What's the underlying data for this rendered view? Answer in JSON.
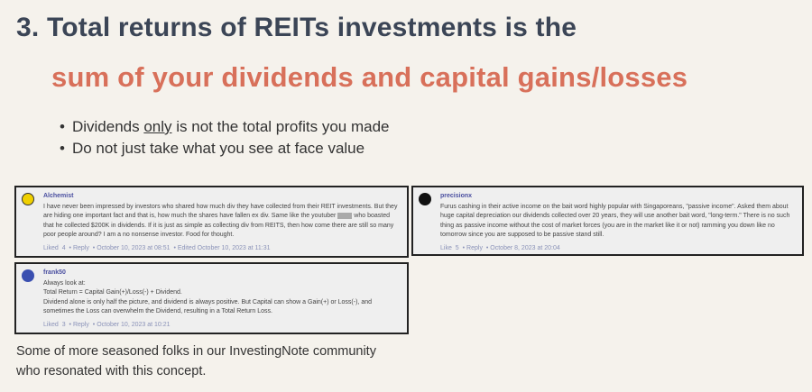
{
  "slide": {
    "title_line1": "3. Total returns of REITs investments is the",
    "title_line2": "sum of your dividends and capital gains/losses",
    "bullet1_pre": "Dividends ",
    "bullet1_underlined": "only",
    "bullet1_post": " is not the total profits you made",
    "bullet2": "Do not just take what you see at face value",
    "footer_line1": "Some of more seasoned folks in our InvestingNote community",
    "footer_line2": "who resonated with this concept.",
    "colors": {
      "title": "#3b4556",
      "subtitle": "#d8705a",
      "background": "#f5f2ec"
    }
  },
  "comments": [
    {
      "user": "Alchemist",
      "text_pre": "I have never been impressed by investors who shared how much div they have collected from their REIT investments. But they are hiding one important fact and that is, how much the shares have fallen ex div. Same like the youtuber ",
      "text_post": " who boasted that he collected $200K in dividends. If it is just as simple as collecting div from REITS, then how come there are still so many poor people around? I am a no nonsense investor. Food for thought.",
      "like_label": "Liked",
      "likes": "4",
      "reply_label": "Reply",
      "date": "October 10, 2023 at 08:51",
      "edited": "Edited October 10, 2023 at 11:31"
    },
    {
      "user": "precisionx",
      "text": "Furus cashing in their active income on the bait word highly popular with Singaporeans, \"passive income\". Asked them about huge capital depreciation our dividends collected over 20 years, they will use another bait word, \"long-term.\" There is no such thing as passive income without the cost of market forces (you are in the market like it or not) ramming you down like no tomorrow since you are supposed to be passive stand still.",
      "like_label": "Like",
      "likes": "5",
      "reply_label": "Reply",
      "date": "October 8, 2023 at 20:04"
    },
    {
      "user": "frank50",
      "line1": "Always look at:",
      "line2": "Total Return = Capital Gain(+)/Loss(-) + Dividend.",
      "line3": "Dividend alone is only half the picture, and dividend is always positive. But Capital can show a Gain(+) or Loss(-), and sometimes the Loss can overwhelm the Dividend, resulting in a Total Return Loss.",
      "like_label": "Liked",
      "likes": "3",
      "reply_label": "Reply",
      "date": "October 10, 2023 at 10:21"
    }
  ]
}
